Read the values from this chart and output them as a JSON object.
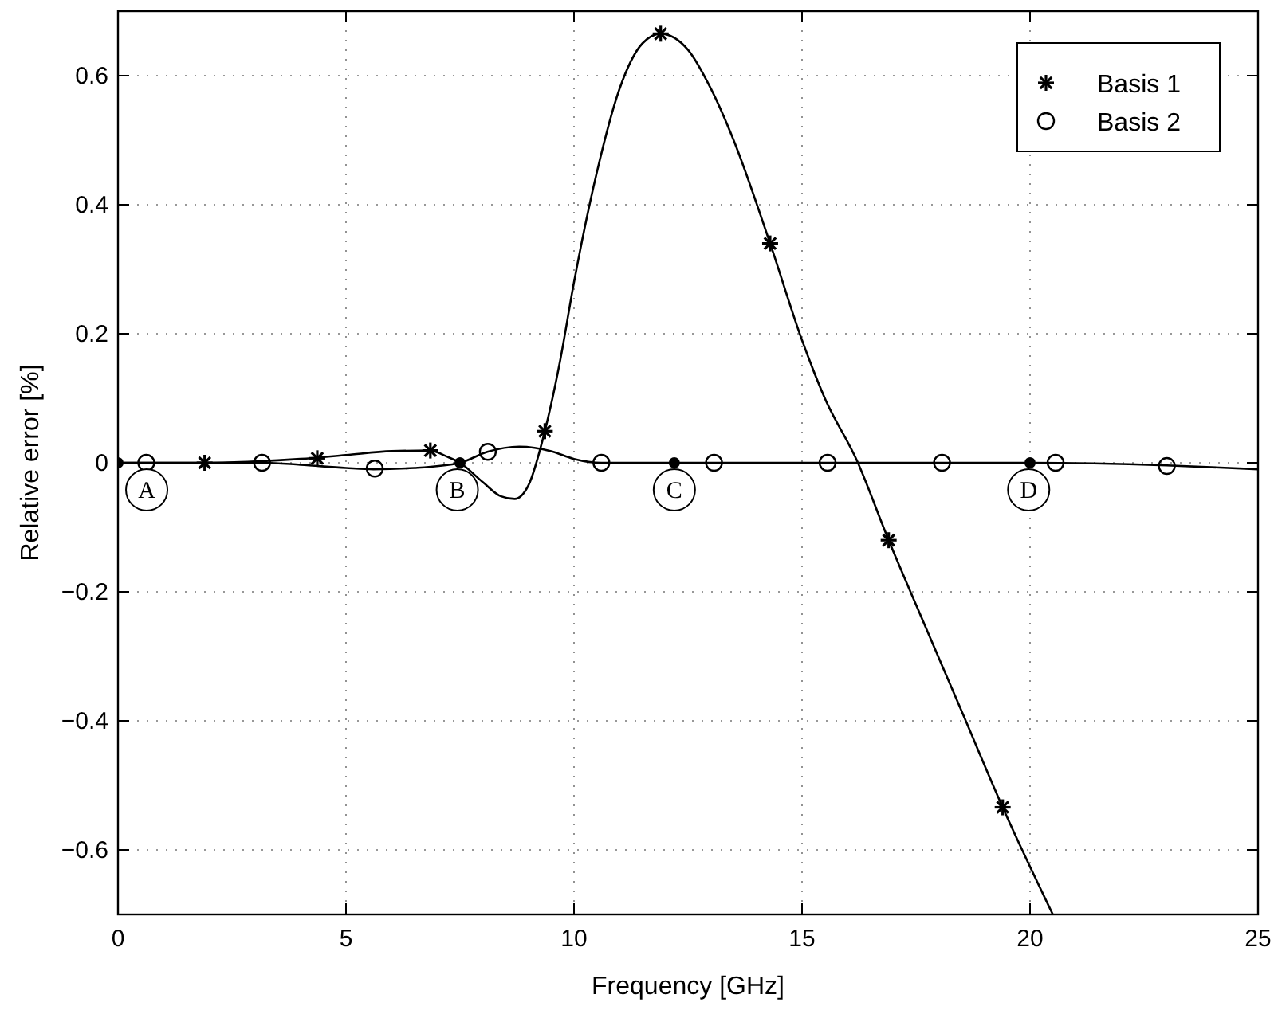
{
  "chart_data": {
    "type": "line",
    "xlabel": "Frequency [GHz]",
    "ylabel": "Relative error [%]",
    "xlim": [
      0,
      25
    ],
    "ylim": [
      -0.7,
      0.7
    ],
    "xticks": [
      0,
      5,
      10,
      15,
      20,
      25
    ],
    "yticks": [
      -0.6,
      -0.4,
      -0.2,
      0,
      0.2,
      0.4,
      0.6
    ],
    "grid": true,
    "legend": "top right",
    "line_style": "solid",
    "series": [
      {
        "color": "#000000",
        "x": [
          0,
          1,
          2,
          3,
          4,
          5,
          6,
          6.85,
          7.2,
          7.5,
          8,
          8.4,
          8.7,
          9,
          9.36,
          9.7,
          10,
          10.5,
          11,
          11.5,
          11.9,
          12.5,
          13,
          13.5,
          14.3,
          15,
          15.5,
          16.2,
          16.9,
          17.5,
          18.5,
          19.4,
          20.5
        ],
        "values": [
          0,
          0,
          0,
          0.002,
          0.006,
          0.012,
          0.018,
          0.019,
          0.01,
          0,
          -0.03,
          -0.052,
          -0.056,
          -0.035,
          0.049,
          0.16,
          0.28,
          0.45,
          0.58,
          0.65,
          0.665,
          0.64,
          0.58,
          0.5,
          0.34,
          0.19,
          0.1,
          0.004,
          -0.12,
          -0.22,
          -0.385,
          -0.534,
          -0.7
        ]
      },
      {
        "color": "#000000",
        "x": [
          0,
          2,
          3.2,
          4,
          5,
          5.6,
          6.5,
          7.5,
          8.1,
          8.8,
          9.5,
          10,
          10.6,
          12,
          15,
          20,
          23,
          25
        ],
        "values": [
          0,
          0,
          0,
          -0.003,
          -0.008,
          -0.01,
          -0.008,
          0,
          0.017,
          0.025,
          0.018,
          0.006,
          0,
          0,
          0,
          0,
          -0.004,
          -0.01
        ]
      },
      {
        "type": "scatter",
        "name": "Basis 1",
        "color": "#000000",
        "marker": "cross",
        "x": [
          1.9,
          4.37,
          6.85,
          9.36,
          11.9,
          14.3,
          16.9,
          19.4
        ],
        "values": [
          0,
          0.007,
          0.019,
          0.049,
          0.665,
          0.34,
          -0.12,
          -0.534
        ]
      },
      {
        "type": "scatter",
        "name": "Basis 2",
        "color": "#000000",
        "marker": "circle",
        "x": [
          0.62,
          3.16,
          5.63,
          8.11,
          10.6,
          13.07,
          15.56,
          18.07,
          20.56,
          23
        ],
        "values": [
          0,
          0,
          -0.009,
          0.017,
          0,
          0,
          0,
          0,
          0,
          -0.005
        ]
      },
      {
        "type": "scatter",
        "color": "#000000",
        "marker": "circle",
        "x": [
          0,
          7.5,
          12.2,
          20
        ],
        "values": [
          0,
          0,
          0,
          0
        ]
      }
    ],
    "annotations": [
      {
        "text": "A",
        "x": 0.63,
        "y": -0.042
      },
      {
        "text": "B",
        "x": 7.44,
        "y": -0.042
      },
      {
        "text": "C",
        "x": 12.2,
        "y": -0.042
      },
      {
        "text": "D",
        "x": 19.97,
        "y": -0.042
      }
    ]
  }
}
